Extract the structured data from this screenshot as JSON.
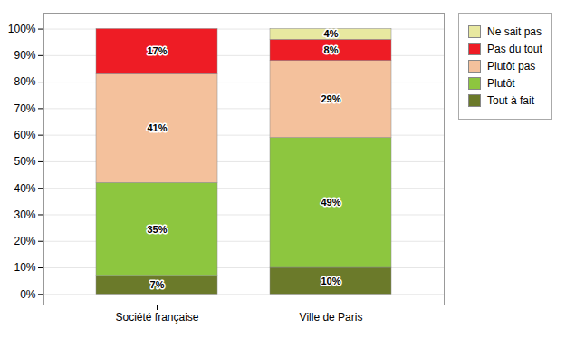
{
  "chart_data": {
    "type": "bar",
    "stacked": true,
    "categories": [
      "Société française",
      "Ville de Paris"
    ],
    "series": [
      {
        "name": "Tout à fait",
        "color": "#6B7A2A",
        "values": [
          7,
          10
        ],
        "value_labels": [
          "7%",
          "10%"
        ]
      },
      {
        "name": "Plutôt",
        "color": "#8DC63F",
        "values": [
          35,
          49
        ],
        "value_labels": [
          "35%",
          "49%"
        ]
      },
      {
        "name": "Plutôt pas",
        "color": "#F4C19C",
        "values": [
          41,
          29
        ],
        "value_labels": [
          "41%",
          "29%"
        ]
      },
      {
        "name": "Pas du tout",
        "color": "#EE1C25",
        "values": [
          17,
          8
        ],
        "value_labels": [
          "17%",
          "8%"
        ]
      },
      {
        "name": "Ne sait pas",
        "color": "#E8E8A0",
        "values": [
          0,
          4
        ],
        "value_labels": [
          null,
          "4%"
        ]
      }
    ],
    "ylim": [
      -4,
      106
    ],
    "yticks": [
      {
        "value": 0,
        "label": "0%"
      },
      {
        "value": 10,
        "label": "10%"
      },
      {
        "value": 20,
        "label": "20%"
      },
      {
        "value": 30,
        "label": "30%"
      },
      {
        "value": 40,
        "label": "40%"
      },
      {
        "value": 50,
        "label": "50%"
      },
      {
        "value": 60,
        "label": "60%"
      },
      {
        "value": 70,
        "label": "70%"
      },
      {
        "value": 80,
        "label": "80%"
      },
      {
        "value": 90,
        "label": "90%"
      },
      {
        "value": 100,
        "label": "100%"
      }
    ],
    "grid": true,
    "legend": "right",
    "data_labels": true
  }
}
